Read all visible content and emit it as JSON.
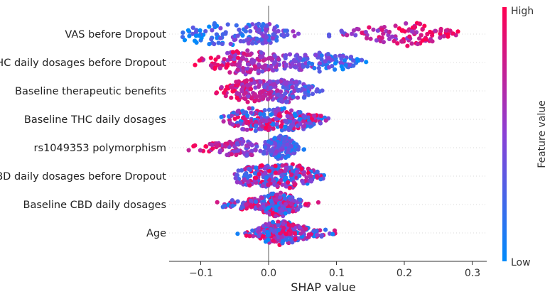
{
  "chart_data": {
    "type": "scatter",
    "subtype": "shap-beeswarm",
    "title": "",
    "xlabel": "SHAP value",
    "xlim": [
      -0.15,
      0.31
    ],
    "x_ticks": [
      -0.1,
      0.0,
      0.1,
      0.2,
      0.3
    ],
    "x_tick_labels": [
      "−0.1",
      "0.0",
      "0.1",
      "0.2",
      "0.3"
    ],
    "features": [
      {
        "name": "VAS before Dropout",
        "min": -0.13,
        "max": 0.29,
        "dist": [
          [
            -0.07,
            0.045,
            0.9
          ],
          [
            -0.0,
            0.02,
            0.55
          ],
          [
            0.2,
            0.045,
            1.0
          ]
        ],
        "color_mode": "pos_high"
      },
      {
        "name": "THC daily dosages before Dropout",
        "min": -0.12,
        "max": 0.15,
        "dist": [
          [
            -0.03,
            0.04,
            1.0
          ],
          [
            0.08,
            0.035,
            0.8
          ]
        ],
        "color_mode": "pos_low"
      },
      {
        "name": "Baseline therapeutic benefits",
        "min": -0.08,
        "max": 0.1,
        "dist": [
          [
            -0.03,
            0.022,
            1.0
          ],
          [
            0.03,
            0.022,
            0.95
          ]
        ],
        "color_mode": "pos_low"
      },
      {
        "name": "Baseline THC daily dosages",
        "min": -0.07,
        "max": 0.1,
        "dist": [
          [
            -0.025,
            0.025,
            0.9
          ],
          [
            0.035,
            0.025,
            0.95
          ]
        ],
        "color_mode": "mixed"
      },
      {
        "name": "rs1049353 polymorphism",
        "min": -0.12,
        "max": 0.06,
        "dist": [
          [
            -0.045,
            0.03,
            0.8
          ],
          [
            0.02,
            0.012,
            1.1
          ]
        ],
        "color_mode": "pos_low"
      },
      {
        "name": "CBD daily dosages before Dropout",
        "min": -0.05,
        "max": 0.09,
        "dist": [
          [
            -0.02,
            0.022,
            0.8
          ],
          [
            0.035,
            0.022,
            0.9
          ]
        ],
        "color_mode": "mixed"
      },
      {
        "name": "Baseline CBD daily dosages",
        "min": -0.08,
        "max": 0.08,
        "dist": [
          [
            0.015,
            0.02,
            1.3
          ],
          [
            -0.04,
            0.02,
            0.35
          ]
        ],
        "color_mode": "mixed"
      },
      {
        "name": "Age",
        "min": -0.05,
        "max": 0.13,
        "dist": [
          [
            0.015,
            0.022,
            1.4
          ],
          [
            0.06,
            0.02,
            0.3
          ]
        ],
        "color_mode": "mixed"
      }
    ],
    "colorbar": {
      "label": "Feature value",
      "high_label": "High",
      "low_label": "Low",
      "high_color": "#ff0052",
      "low_color": "#008bfb"
    },
    "zero_line_color": "#999999"
  }
}
